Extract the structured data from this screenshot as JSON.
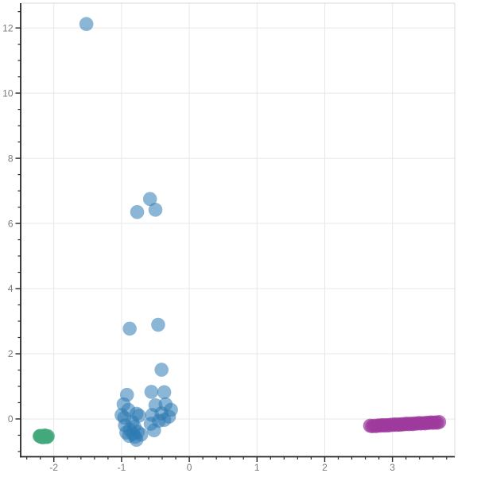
{
  "chart": {
    "background": "#ffffff",
    "grid_color": "#e7e7e7",
    "spine_dark_color": "#262626",
    "spine_light_color": "#d9d9d9",
    "tick_color": "#262626",
    "tick_label_color": "#7a7a7a",
    "tick_label_size": 12,
    "x_axis": {
      "min": -2.49,
      "max": 3.92,
      "major_ticks": [
        -2,
        -1,
        0,
        1,
        2,
        3
      ],
      "tick_labels": [
        "-2",
        "-1",
        "0",
        "1",
        "2",
        "3"
      ],
      "minor_step": 0.2
    },
    "y_axis": {
      "min": -1.16,
      "max": 12.76,
      "major_ticks": [
        0,
        2,
        4,
        6,
        8,
        10,
        12
      ],
      "tick_labels": [
        "0",
        "2",
        "4",
        "6",
        "8",
        "10",
        "12"
      ],
      "minor_step": 0.5
    }
  },
  "chart_data": {
    "type": "scatter",
    "title": "",
    "xlabel": "",
    "ylabel": "",
    "legend": "",
    "grid": "major-only",
    "marker_radius": 8.8,
    "xlim": [
      -2.49,
      3.92
    ],
    "ylim": [
      -1.16,
      12.76
    ],
    "series": [
      {
        "name": "blue-cluster",
        "color": "#2e7ab2",
        "opacity": 0.55,
        "points": [
          [
            -1.52,
            12.12
          ],
          [
            -0.77,
            6.35
          ],
          [
            -0.58,
            6.75
          ],
          [
            -0.5,
            6.42
          ],
          [
            -0.88,
            2.77
          ],
          [
            -0.46,
            2.89
          ],
          [
            -0.41,
            1.51
          ],
          [
            -0.92,
            0.74
          ],
          [
            -0.56,
            0.83
          ],
          [
            -0.37,
            0.82
          ],
          [
            -0.97,
            0.45
          ],
          [
            -0.9,
            0.28
          ],
          [
            -0.78,
            0.16
          ],
          [
            -0.96,
            0.04
          ],
          [
            -0.84,
            -0.1
          ],
          [
            -0.5,
            0.42
          ],
          [
            -0.35,
            0.45
          ],
          [
            -0.27,
            0.28
          ],
          [
            -0.55,
            0.12
          ],
          [
            -0.41,
            0.17
          ],
          [
            -0.3,
            0.07
          ],
          [
            -0.45,
            -0.06
          ],
          [
            -0.57,
            -0.15
          ],
          [
            -0.52,
            -0.35
          ],
          [
            -0.37,
            -0.03
          ],
          [
            -1.0,
            0.12
          ],
          [
            -0.74,
            0.1
          ],
          [
            -0.95,
            -0.2
          ],
          [
            -0.81,
            -0.24
          ],
          [
            -0.88,
            -0.33
          ],
          [
            -0.93,
            -0.42
          ],
          [
            -0.83,
            -0.46
          ],
          [
            -0.76,
            -0.4
          ],
          [
            -0.89,
            -0.52
          ],
          [
            -0.8,
            -0.55
          ],
          [
            -0.71,
            -0.48
          ],
          [
            -0.78,
            -0.64
          ]
        ]
      },
      {
        "name": "green-cluster",
        "color": "#44a97d",
        "opacity": 0.8,
        "points": [
          [
            -2.21,
            -0.53
          ],
          [
            -2.18,
            -0.555
          ],
          [
            -2.15,
            -0.52
          ],
          [
            -2.12,
            -0.55
          ],
          [
            -2.09,
            -0.53
          ],
          [
            -2.16,
            -0.565
          ],
          [
            -2.13,
            -0.51
          ],
          [
            -2.19,
            -0.545
          ],
          [
            -2.1,
            -0.555
          ],
          [
            -2.2,
            -0.52
          ]
        ]
      },
      {
        "name": "purple-cluster",
        "color": "#9e3a9e",
        "opacity": 0.7,
        "points": [
          [
            2.67,
            -0.208
          ],
          [
            2.7,
            -0.225
          ],
          [
            2.73,
            -0.209
          ],
          [
            2.76,
            -0.222
          ],
          [
            2.79,
            -0.198
          ],
          [
            2.82,
            -0.207
          ],
          [
            2.85,
            -0.187
          ],
          [
            2.88,
            -0.204
          ],
          [
            2.91,
            -0.188
          ],
          [
            2.94,
            -0.201
          ],
          [
            2.97,
            -0.178
          ],
          [
            3.0,
            -0.186
          ],
          [
            3.03,
            -0.167
          ],
          [
            3.06,
            -0.183
          ],
          [
            3.09,
            -0.168
          ],
          [
            3.12,
            -0.18
          ],
          [
            3.15,
            -0.157
          ],
          [
            3.18,
            -0.165
          ],
          [
            3.21,
            -0.146
          ],
          [
            3.24,
            -0.162
          ],
          [
            3.27,
            -0.147
          ],
          [
            3.3,
            -0.16
          ],
          [
            3.33,
            -0.136
          ],
          [
            3.36,
            -0.145
          ],
          [
            3.39,
            -0.125
          ],
          [
            3.42,
            -0.142
          ],
          [
            3.45,
            -0.126
          ],
          [
            3.48,
            -0.139
          ],
          [
            3.51,
            -0.115
          ],
          [
            3.54,
            -0.124
          ],
          [
            3.57,
            -0.105
          ],
          [
            3.6,
            -0.121
          ],
          [
            3.63,
            -0.106
          ],
          [
            3.66,
            -0.118
          ],
          [
            3.69,
            -0.095
          ]
        ]
      }
    ]
  }
}
